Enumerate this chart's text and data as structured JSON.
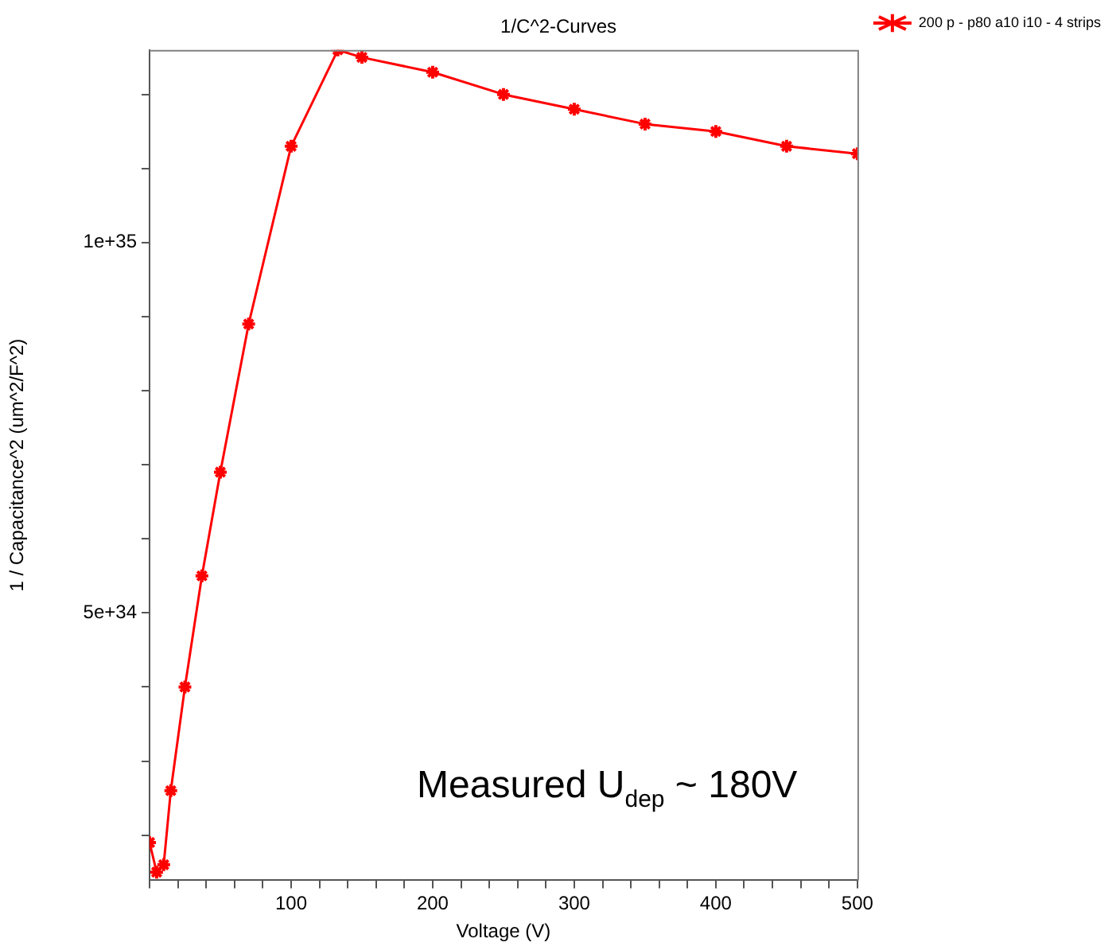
{
  "chart_data": {
    "type": "line",
    "title": "1/C^2-Curves",
    "xlabel": "Voltage (V)",
    "ylabel": "1 / Capacitance^2 (um^2/F^2)",
    "annotations": [
      "Measured U$_{dep}$ ~ 180V"
    ],
    "series": [
      {
        "name": "200 p - p80 a10 i10 - 4 strips",
        "color": "#ff0000",
        "x": [
          0,
          5,
          10,
          15,
          25,
          37,
          50,
          70,
          100,
          133,
          150,
          200,
          250,
          300,
          350,
          400,
          450,
          500
        ],
        "values": [
          1.9e+34,
          1.5e+34,
          1.6e+34,
          2.6e+34,
          4e+34,
          5.5e+34,
          6.9e+34,
          8.9e+34,
          1.13e+35,
          1.26e+35,
          1.25e+35,
          1.23e+35,
          1.2e+35,
          1.18e+35,
          1.16e+35,
          1.15e+35,
          1.13e+35,
          1.12e+35
        ]
      }
    ],
    "xlim": [
      0,
      500
    ],
    "xticks": [
      {
        "value": 0,
        "label": null
      },
      {
        "value": 20,
        "label": null
      },
      {
        "value": 40,
        "label": null
      },
      {
        "value": 60,
        "label": null
      },
      {
        "value": 80,
        "label": null
      },
      100,
      {
        "value": 120,
        "label": null
      },
      {
        "value": 140,
        "label": null
      },
      {
        "value": 160,
        "label": null
      },
      {
        "value": 180,
        "label": null
      },
      200,
      {
        "value": 220,
        "label": null
      },
      {
        "value": 240,
        "label": null
      },
      {
        "value": 260,
        "label": null
      },
      {
        "value": 280,
        "label": null
      },
      300,
      {
        "value": 320,
        "label": null
      },
      {
        "value": 340,
        "label": null
      },
      {
        "value": 360,
        "label": null
      },
      {
        "value": 380,
        "label": null
      },
      400,
      {
        "value": 420,
        "label": null
      },
      {
        "value": 440,
        "label": null
      },
      {
        "value": 460,
        "label": null
      },
      {
        "value": 480,
        "label": null
      },
      500
    ],
    "ylim": [
      1.39e+34,
      1.26e+35
    ],
    "yticks": [
      {
        "value": 2e+34,
        "label": null
      },
      {
        "value": 3e+34,
        "label": null
      },
      {
        "value": 4e+34,
        "label": null
      },
      {
        "value": 5e+34,
        "label": "5e+34"
      },
      {
        "value": 6e+34,
        "label": null
      },
      {
        "value": 7e+34,
        "label": null
      },
      {
        "value": 8e+34,
        "label": null
      },
      {
        "value": 9e+34,
        "label": null
      },
      {
        "value": 1e+35,
        "label": "1e+35"
      },
      {
        "value": 1.1e+35,
        "label": null
      },
      {
        "value": 1.2e+35,
        "label": null
      }
    ],
    "grid": false,
    "legend": "top right",
    "marker": "cross",
    "line_style": "solid"
  }
}
